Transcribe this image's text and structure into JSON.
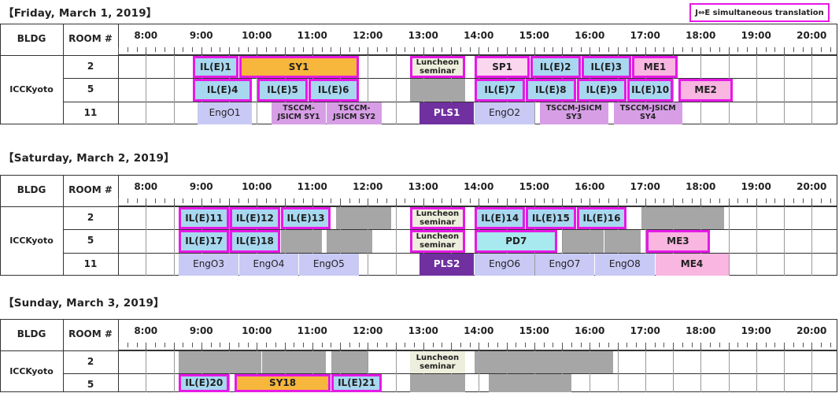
{
  "legend": "J⇔E simultaneous translation",
  "headers": {
    "bldg": "BLDG",
    "room": "ROOM #"
  },
  "hours": [
    "8:00",
    "9:00",
    "10:00",
    "11:00",
    "12:00",
    "13:00",
    "14:00",
    "15:00",
    "16:00",
    "17:00",
    "18:00",
    "19:00",
    "20:00"
  ],
  "days": [
    {
      "title": "【Friday, March 1, 2019】",
      "building": "ICCKyoto",
      "rooms": [
        "2",
        "5",
        "11"
      ],
      "sessions": [
        {
          "row": 0,
          "start": "8:50",
          "end": "9:40",
          "label": "IL(E)1",
          "style": "c-il",
          "simul": true
        },
        {
          "row": 0,
          "start": "9:40",
          "end": "11:50",
          "label": "SY1",
          "style": "c-sy",
          "simul": true
        },
        {
          "row": 0,
          "start": "12:45",
          "end": "13:45",
          "label": "Luncheon\nseminar",
          "style": "c-lunch",
          "simul": true
        },
        {
          "row": 0,
          "start": "13:55",
          "end": "14:55",
          "label": "SP1",
          "style": "c-lpink",
          "simul": true
        },
        {
          "row": 0,
          "start": "14:55",
          "end": "15:50",
          "label": "IL(E)2",
          "style": "c-il",
          "simul": true
        },
        {
          "row": 0,
          "start": "15:50",
          "end": "16:45",
          "label": "IL(E)3",
          "style": "c-il",
          "simul": true
        },
        {
          "row": 0,
          "start": "16:45",
          "end": "17:35",
          "label": "ME1",
          "style": "c-pink",
          "simul": true
        },
        {
          "row": 1,
          "start": "8:50",
          "end": "9:55",
          "label": "IL(E)4",
          "style": "c-il",
          "simul": true
        },
        {
          "row": 1,
          "start": "10:00",
          "end": "10:55",
          "label": "IL(E)5",
          "style": "c-il",
          "simul": true
        },
        {
          "row": 1,
          "start": "10:55",
          "end": "11:50",
          "label": "IL(E)6",
          "style": "c-il",
          "simul": true
        },
        {
          "row": 1,
          "start": "12:45",
          "end": "13:45",
          "label": "",
          "style": "c-grey",
          "simul": false
        },
        {
          "row": 1,
          "start": "13:55",
          "end": "14:50",
          "label": "IL(E)7",
          "style": "c-il",
          "simul": true
        },
        {
          "row": 1,
          "start": "14:50",
          "end": "15:45",
          "label": "IL(E)8",
          "style": "c-il",
          "simul": true
        },
        {
          "row": 1,
          "start": "15:45",
          "end": "16:40",
          "label": "IL(E)9",
          "style": "c-il",
          "simul": true
        },
        {
          "row": 1,
          "start": "16:40",
          "end": "17:30",
          "label": "IL(E)10",
          "style": "c-il",
          "simul": true
        },
        {
          "row": 1,
          "start": "17:35",
          "end": "18:35",
          "label": "ME2",
          "style": "c-pink",
          "simul": true
        },
        {
          "row": 2,
          "start": "8:55",
          "end": "9:55",
          "label": "EngO1",
          "style": "c-eng",
          "simul": false
        },
        {
          "row": 2,
          "start": "10:15",
          "end": "11:15",
          "label": "TSCCM-\nJSICM SY1",
          "style": "c-lav",
          "simul": false,
          "small": true
        },
        {
          "row": 2,
          "start": "11:15",
          "end": "12:15",
          "label": "TSCCM-\nJSICM SY2",
          "style": "c-lav",
          "simul": false,
          "small": true
        },
        {
          "row": 2,
          "start": "12:55",
          "end": "13:55",
          "label": "PLS1",
          "style": "c-pls",
          "simul": false
        },
        {
          "row": 2,
          "start": "13:55",
          "end": "15:00",
          "label": "EngO2",
          "style": "c-eng",
          "simul": false
        },
        {
          "row": 2,
          "start": "15:05",
          "end": "16:20",
          "label": "TSCCM-JSICM\nSY3",
          "style": "c-lav",
          "simul": false,
          "small": true
        },
        {
          "row": 2,
          "start": "16:25",
          "end": "17:40",
          "label": "TSCCM-JSICM\nSY4",
          "style": "c-lav",
          "simul": false,
          "small": true
        }
      ]
    },
    {
      "title": "【Saturday, March 2, 2019】",
      "building": "ICCKyoto",
      "rooms": [
        "2",
        "5",
        "11"
      ],
      "sessions": [
        {
          "row": 0,
          "start": "8:35",
          "end": "9:30",
          "label": "IL(E)11",
          "style": "c-il",
          "simul": true
        },
        {
          "row": 0,
          "start": "9:30",
          "end": "10:25",
          "label": "IL(E)12",
          "style": "c-il",
          "simul": true
        },
        {
          "row": 0,
          "start": "10:25",
          "end": "11:20",
          "label": "IL(E)13",
          "style": "c-il",
          "simul": true
        },
        {
          "row": 0,
          "start": "11:25",
          "end": "12:25",
          "label": "",
          "style": "c-grey",
          "simul": false
        },
        {
          "row": 0,
          "start": "12:45",
          "end": "13:45",
          "label": "Luncheon\nseminar",
          "style": "c-lunch",
          "simul": true
        },
        {
          "row": 0,
          "start": "13:55",
          "end": "14:50",
          "label": "IL(E)14",
          "style": "c-il",
          "simul": true
        },
        {
          "row": 0,
          "start": "14:50",
          "end": "15:45",
          "label": "IL(E)15",
          "style": "c-il",
          "simul": true
        },
        {
          "row": 0,
          "start": "15:45",
          "end": "16:40",
          "label": "IL(E)16",
          "style": "c-il",
          "simul": true
        },
        {
          "row": 0,
          "start": "16:55",
          "end": "18:25",
          "label": "",
          "style": "c-grey",
          "simul": false
        },
        {
          "row": 1,
          "start": "8:35",
          "end": "9:30",
          "label": "IL(E)17",
          "style": "c-il",
          "simul": true
        },
        {
          "row": 1,
          "start": "9:30",
          "end": "10:25",
          "label": "IL(E)18",
          "style": "c-il",
          "simul": true
        },
        {
          "row": 1,
          "start": "10:25",
          "end": "11:10",
          "label": "",
          "style": "c-grey",
          "simul": false
        },
        {
          "row": 1,
          "start": "11:15",
          "end": "12:05",
          "label": "",
          "style": "c-grey",
          "simul": false
        },
        {
          "row": 1,
          "start": "12:45",
          "end": "13:45",
          "label": "Luncheon\nseminar",
          "style": "c-lunch",
          "simul": true
        },
        {
          "row": 1,
          "start": "13:55",
          "end": "15:25",
          "label": "PD7",
          "style": "c-pd",
          "simul": true
        },
        {
          "row": 1,
          "start": "15:30",
          "end": "16:15",
          "label": "",
          "style": "c-grey",
          "simul": false
        },
        {
          "row": 1,
          "start": "16:15",
          "end": "16:55",
          "label": "",
          "style": "c-grey",
          "simul": false
        },
        {
          "row": 1,
          "start": "17:00",
          "end": "18:10",
          "label": "ME3",
          "style": "c-pink",
          "simul": true
        },
        {
          "row": 2,
          "start": "8:35",
          "end": "9:40",
          "label": "EngO3",
          "style": "c-eng",
          "simul": false
        },
        {
          "row": 2,
          "start": "9:40",
          "end": "10:45",
          "label": "EngO4",
          "style": "c-eng",
          "simul": false
        },
        {
          "row": 2,
          "start": "10:45",
          "end": "11:50",
          "label": "EngO5",
          "style": "c-eng",
          "simul": false
        },
        {
          "row": 2,
          "start": "12:55",
          "end": "13:55",
          "label": "PLS2",
          "style": "c-pls",
          "simul": false
        },
        {
          "row": 2,
          "start": "13:55",
          "end": "15:00",
          "label": "EngO6",
          "style": "c-eng",
          "simul": false
        },
        {
          "row": 2,
          "start": "15:00",
          "end": "16:05",
          "label": "EngO7",
          "style": "c-eng",
          "simul": false
        },
        {
          "row": 2,
          "start": "16:05",
          "end": "17:10",
          "label": "EngO8",
          "style": "c-eng",
          "simul": false
        },
        {
          "row": 2,
          "start": "17:10",
          "end": "18:30",
          "label": "ME4",
          "style": "c-pink",
          "simul": false
        }
      ]
    },
    {
      "title": "【Sunday, March 3, 2019】",
      "building": "ICCKyoto",
      "rooms": [
        "2",
        "5"
      ],
      "sessions": [
        {
          "row": 0,
          "start": "8:35",
          "end": "10:05",
          "label": "",
          "style": "c-grey",
          "simul": false
        },
        {
          "row": 0,
          "start": "10:05",
          "end": "11:15",
          "label": "",
          "style": "c-grey",
          "simul": false
        },
        {
          "row": 0,
          "start": "11:20",
          "end": "12:00",
          "label": "",
          "style": "c-grey",
          "simul": false
        },
        {
          "row": 0,
          "start": "12:45",
          "end": "13:45",
          "label": "Luncheon\nseminar",
          "style": "c-lunch",
          "simul": false
        },
        {
          "row": 0,
          "start": "13:55",
          "end": "16:25",
          "label": "",
          "style": "c-grey",
          "simul": false
        },
        {
          "row": 1,
          "start": "8:35",
          "end": "9:30",
          "label": "IL(E)20",
          "style": "c-il",
          "simul": true
        },
        {
          "row": 1,
          "start": "9:35",
          "end": "11:20",
          "label": "SY18",
          "style": "c-sy",
          "simul": true
        },
        {
          "row": 1,
          "start": "11:20",
          "end": "12:15",
          "label": "IL(E)21",
          "style": "c-il",
          "simul": true
        },
        {
          "row": 1,
          "start": "12:45",
          "end": "13:45",
          "label": "",
          "style": "c-grey",
          "simul": false
        },
        {
          "row": 1,
          "start": "14:10",
          "end": "15:40",
          "label": "",
          "style": "c-grey",
          "simul": false
        }
      ]
    }
  ]
}
